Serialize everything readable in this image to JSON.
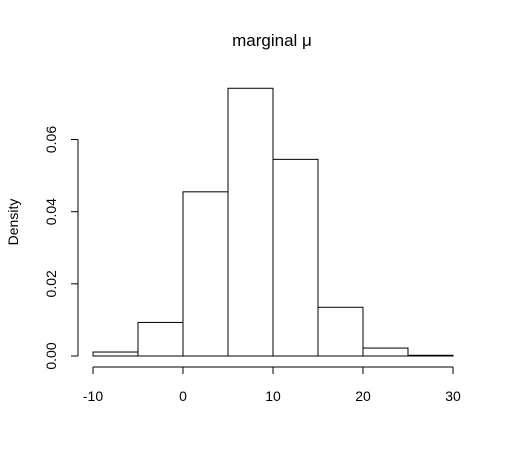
{
  "chart_data": {
    "type": "bar",
    "title": "marginal μ",
    "xlabel": "",
    "ylabel": "Density",
    "bins": [
      {
        "start": -10,
        "end": -5,
        "density": 0.0011
      },
      {
        "start": -5,
        "end": 0,
        "density": 0.0093
      },
      {
        "start": 0,
        "end": 5,
        "density": 0.0455
      },
      {
        "start": 5,
        "end": 10,
        "density": 0.0742
      },
      {
        "start": 10,
        "end": 15,
        "density": 0.0545
      },
      {
        "start": 15,
        "end": 20,
        "density": 0.0135
      },
      {
        "start": 20,
        "end": 25,
        "density": 0.0022
      },
      {
        "start": 25,
        "end": 30,
        "density": 0.0002
      }
    ],
    "xlim": [
      -10,
      30
    ],
    "ylim": [
      0,
      0.074
    ],
    "x_ticks": [
      -10,
      0,
      10,
      20,
      30
    ],
    "x_tick_labels": [
      "-10",
      "0",
      "10",
      "20",
      "30"
    ],
    "y_ticks": [
      0,
      0.02,
      0.04,
      0.06
    ],
    "y_tick_labels": [
      "0.00",
      "0.02",
      "0.04",
      "0.06"
    ],
    "grid": false,
    "legend": "none",
    "bar_fill": "#ffffff",
    "bar_stroke": "#000000"
  }
}
